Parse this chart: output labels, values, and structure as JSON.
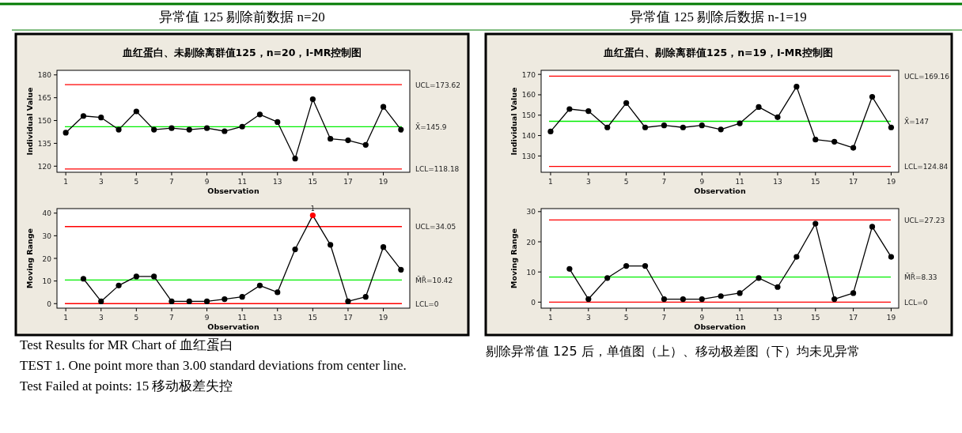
{
  "chart_data": [
    {
      "type": "line",
      "title": "异常值 125 剔除前数据 n=20",
      "subtitle": "血红蛋白、未剔除离群值125，n=20，I-MR控制图",
      "xlabel": "Observation",
      "ylabel": "Individual Value",
      "x": [
        1,
        2,
        3,
        4,
        5,
        6,
        7,
        8,
        9,
        10,
        11,
        12,
        13,
        14,
        15,
        16,
        17,
        18,
        19,
        20
      ],
      "series": [
        {
          "color": "#000000",
          "values": [
            142,
            153,
            152,
            144,
            156,
            144,
            145,
            144,
            145,
            143,
            146,
            154,
            149,
            125,
            164,
            138,
            137,
            134,
            159,
            144
          ]
        }
      ],
      "xlim": [
        0.5,
        20.5
      ],
      "xticks": [
        1,
        3,
        5,
        7,
        9,
        11,
        13,
        15,
        17,
        19
      ],
      "ylim": [
        116,
        183
      ],
      "yticks": [
        120,
        135,
        150,
        165,
        180
      ],
      "ref_lines": [
        {
          "axis": "y",
          "value": 173.62,
          "label": "UCL=173.62",
          "color": "#ff0000"
        },
        {
          "axis": "y",
          "value": 145.9,
          "label": "X̄=145.9",
          "color": "#00ee00"
        },
        {
          "axis": "y",
          "value": 118.18,
          "label": "LCL=118.18",
          "color": "#ff0000"
        }
      ],
      "marker": "circle",
      "grid": false
    },
    {
      "type": "line",
      "xlabel": "Observation",
      "ylabel": "Moving Range",
      "x": [
        2,
        3,
        4,
        5,
        6,
        7,
        8,
        9,
        10,
        11,
        12,
        13,
        14,
        15,
        16,
        17,
        18,
        19,
        20
      ],
      "series": [
        {
          "color": "#000000",
          "values": [
            11,
            1,
            8,
            12,
            12,
            1,
            1,
            1,
            2,
            3,
            8,
            5,
            24,
            39,
            26,
            1,
            3,
            25,
            15
          ],
          "colors": [
            "#000000",
            "#000000",
            "#000000",
            "#000000",
            "#000000",
            "#000000",
            "#000000",
            "#000000",
            "#000000",
            "#000000",
            "#000000",
            "#000000",
            "#000000",
            "#ff0000",
            "#000000",
            "#000000",
            "#000000",
            "#000000",
            "#000000"
          ]
        }
      ],
      "xlim": [
        0.5,
        20.5
      ],
      "xticks": [
        1,
        3,
        5,
        7,
        9,
        11,
        13,
        15,
        17,
        19
      ],
      "ylim": [
        -2,
        42
      ],
      "yticks": [
        0,
        10,
        20,
        30,
        40
      ],
      "ref_lines": [
        {
          "axis": "y",
          "value": 34.05,
          "label": "UCL=34.05",
          "color": "#ff0000"
        },
        {
          "axis": "y",
          "value": 10.42,
          "label": "M̄R̄=10.42",
          "color": "#00ee00"
        },
        {
          "axis": "y",
          "value": 0,
          "label": "LCL=0",
          "color": "#ff0000"
        }
      ],
      "annotations": [
        {
          "text": "1",
          "x": 15,
          "y": 39
        },
        "Test Results for MR Chart of  血红蛋白",
        "TEST 1. One point more than 3.00 standard deviations from center line.",
        "Test Failed at points:    15  移动极差失控"
      ],
      "marker": "circle",
      "grid": false
    },
    {
      "type": "line",
      "title": "异常值 125 剔除后数据 n-1=19",
      "subtitle": "血红蛋白、剔除离群值125，n=19，I-MR控制图",
      "xlabel": "Observation",
      "ylabel": "Individual Value",
      "x": [
        1,
        2,
        3,
        4,
        5,
        6,
        7,
        8,
        9,
        10,
        11,
        12,
        13,
        14,
        15,
        16,
        17,
        18,
        19
      ],
      "series": [
        {
          "color": "#000000",
          "values": [
            142,
            153,
            152,
            144,
            156,
            144,
            145,
            144,
            145,
            143,
            146,
            154,
            149,
            164,
            138,
            137,
            134,
            159,
            144
          ]
        }
      ],
      "xlim": [
        0.5,
        19.4
      ],
      "xticks": [
        1,
        3,
        5,
        7,
        9,
        11,
        13,
        15,
        17,
        19
      ],
      "ylim": [
        122,
        172
      ],
      "yticks": [
        130,
        140,
        150,
        160,
        170
      ],
      "ref_lines": [
        {
          "axis": "y",
          "value": 169.16,
          "label": "UCL=169.16",
          "color": "#ff0000"
        },
        {
          "axis": "y",
          "value": 147,
          "label": "X̄=147",
          "color": "#00ee00"
        },
        {
          "axis": "y",
          "value": 124.84,
          "label": "LCL=124.84",
          "color": "#ff0000"
        }
      ],
      "marker": "circle",
      "grid": false
    },
    {
      "type": "line",
      "xlabel": "Observation",
      "ylabel": "Moving Range",
      "x": [
        2,
        3,
        4,
        5,
        6,
        7,
        8,
        9,
        10,
        11,
        12,
        13,
        14,
        15,
        16,
        17,
        18,
        19
      ],
      "series": [
        {
          "color": "#000000",
          "values": [
            11,
            1,
            8,
            12,
            12,
            1,
            1,
            1,
            2,
            3,
            8,
            5,
            15,
            26,
            1,
            3,
            25,
            15
          ]
        }
      ],
      "xlim": [
        0.5,
        19.4
      ],
      "xticks": [
        1,
        3,
        5,
        7,
        9,
        11,
        13,
        15,
        17,
        19
      ],
      "ylim": [
        -2,
        31
      ],
      "yticks": [
        0,
        10,
        20,
        30
      ],
      "ref_lines": [
        {
          "axis": "y",
          "value": 27.23,
          "label": "UCL=27.23",
          "color": "#ff0000"
        },
        {
          "axis": "y",
          "value": 8.33,
          "label": "M̄R̄=8.33",
          "color": "#00ee00"
        },
        {
          "axis": "y",
          "value": 0,
          "label": "LCL=0",
          "color": "#ff0000"
        }
      ],
      "annotations": [
        "剔除异常值 125 后，单值图（上）、移动极差图（下）均未见异常"
      ],
      "marker": "circle",
      "grid": false
    }
  ]
}
